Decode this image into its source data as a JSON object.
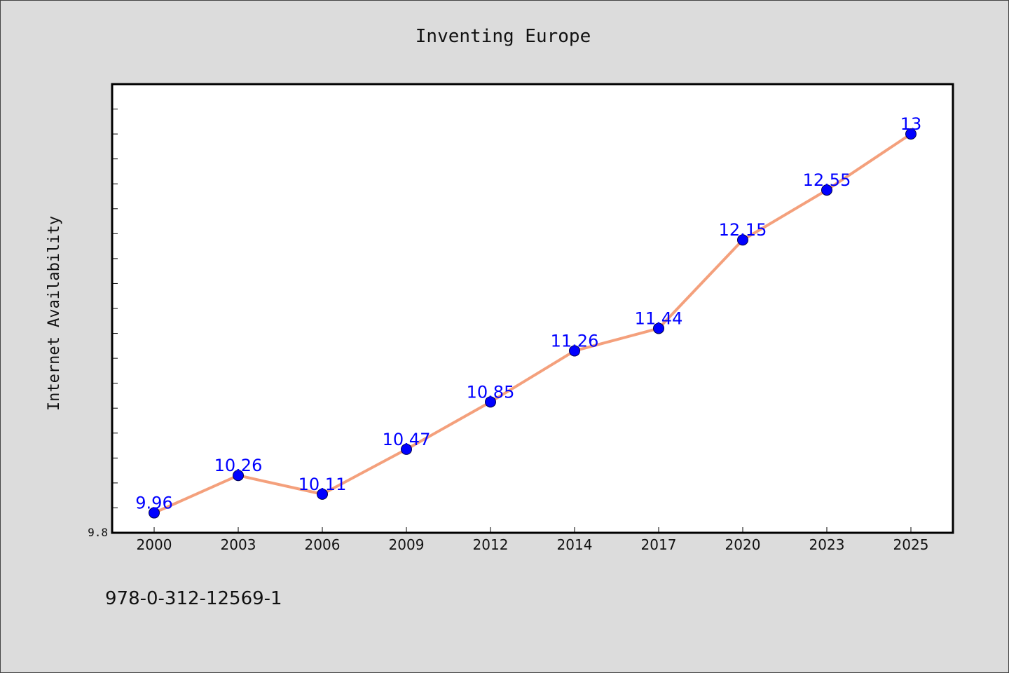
{
  "chart_data": {
    "type": "line",
    "title": "Inventing Europe",
    "xlabel": "",
    "ylabel": "Internet Availability",
    "categories": [
      "2000",
      "2003",
      "2006",
      "2009",
      "2012",
      "2014",
      "2017",
      "2020",
      "2023",
      "2025"
    ],
    "series": [
      {
        "values": [
          9.96,
          10.26,
          10.11,
          10.47,
          10.85,
          11.26,
          11.44,
          12.15,
          12.55,
          13
        ]
      }
    ],
    "data_labels": [
      "9.96",
      "10.26",
      "10.11",
      "10.47",
      "10.85",
      "11.26",
      "11.44",
      "12.15",
      "12.55",
      "13"
    ],
    "ylim": [
      9.8,
      13.4
    ],
    "y_tick_labels": [
      "9.8"
    ],
    "grid": false,
    "line_color": "#f4a07c",
    "marker_color": "#0000ff",
    "label_color": "#0000ff"
  },
  "footnote": "978-0-312-12569-1"
}
